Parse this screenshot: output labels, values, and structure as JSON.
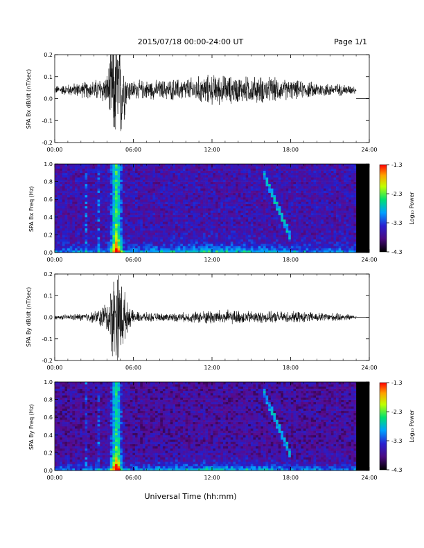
{
  "header": {
    "date_range": "2015/07/18  00:00-24:00 UT",
    "page": "Page 1/1"
  },
  "footer": {
    "xlabel": "Universal Time (hh:mm)"
  },
  "colors": {
    "trace": "#000000",
    "axis": "#000000",
    "colormap": [
      "#000000",
      "#5a0a8c",
      "#2020d0",
      "#00a0ff",
      "#00e080",
      "#c0ff00",
      "#ffa000",
      "#ff0000"
    ]
  },
  "chart_data": [
    {
      "type": "line",
      "ylabel": "SPA Bx dB/dt (nT/sec)",
      "xlim": [
        0,
        24
      ],
      "ylim": [
        -0.2,
        0.2
      ],
      "xticks": [
        "00:00",
        "06:00",
        "12:00",
        "18:00",
        "24:00"
      ],
      "yticks": [
        "-0.2",
        "-0.1",
        "0.0",
        "0.1",
        "0.2"
      ],
      "baseline": 0.04,
      "data_end_hour": 23.0,
      "x": [
        0,
        1,
        2,
        3,
        4,
        4.5,
        5,
        5.5,
        6,
        8,
        10,
        12,
        14,
        16,
        18,
        20,
        22,
        23
      ],
      "envelope": [
        0.02,
        0.03,
        0.04,
        0.05,
        0.08,
        0.3,
        0.3,
        0.07,
        0.05,
        0.05,
        0.06,
        0.08,
        0.07,
        0.07,
        0.05,
        0.04,
        0.03,
        0.02
      ]
    },
    {
      "type": "heatmap",
      "ylabel": "SPA Bx Freq (Hz)",
      "xlim": [
        0,
        24
      ],
      "ylim": [
        0,
        1.0
      ],
      "xticks": [
        "00:00",
        "06:00",
        "12:00",
        "18:00",
        "24:00"
      ],
      "yticks": [
        "0.0",
        "0.2",
        "0.4",
        "0.6",
        "0.8",
        "1.0"
      ],
      "colorbar": {
        "label": "Log₁₀ Power",
        "range": [
          -4.3,
          -1.3
        ],
        "ticks": [
          "-1.3",
          "-2.3",
          "-3.3",
          "-4.3"
        ]
      },
      "data_end_hour": 23.0
    },
    {
      "type": "line",
      "ylabel": "SPA By dB/dt (nT/sec)",
      "xlim": [
        0,
        24
      ],
      "ylim": [
        -0.2,
        0.2
      ],
      "xticks": [
        "00:00",
        "06:00",
        "12:00",
        "18:00",
        "24:00"
      ],
      "yticks": [
        "-0.2",
        "-0.1",
        "0.0",
        "0.1",
        "0.2"
      ],
      "baseline": 0.0,
      "data_end_hour": 23.0,
      "x": [
        0,
        1,
        2,
        3,
        4,
        4.5,
        5,
        5.5,
        6,
        8,
        10,
        12,
        14,
        16,
        18,
        20,
        22,
        23
      ],
      "envelope": [
        0.01,
        0.015,
        0.02,
        0.03,
        0.08,
        0.25,
        0.25,
        0.08,
        0.03,
        0.02,
        0.025,
        0.04,
        0.035,
        0.03,
        0.03,
        0.025,
        0.02,
        0.01
      ]
    },
    {
      "type": "heatmap",
      "ylabel": "SPA By Freq (Hz)",
      "xlim": [
        0,
        24
      ],
      "ylim": [
        0,
        1.0
      ],
      "xticks": [
        "00:00",
        "06:00",
        "12:00",
        "18:00",
        "24:00"
      ],
      "yticks": [
        "0.0",
        "0.2",
        "0.4",
        "0.6",
        "0.8",
        "1.0"
      ],
      "colorbar": {
        "label": "Log₁₀ Power",
        "range": [
          -4.3,
          -1.3
        ],
        "ticks": [
          "-1.3",
          "-2.3",
          "-3.3",
          "-4.3"
        ]
      },
      "data_end_hour": 23.0
    }
  ]
}
